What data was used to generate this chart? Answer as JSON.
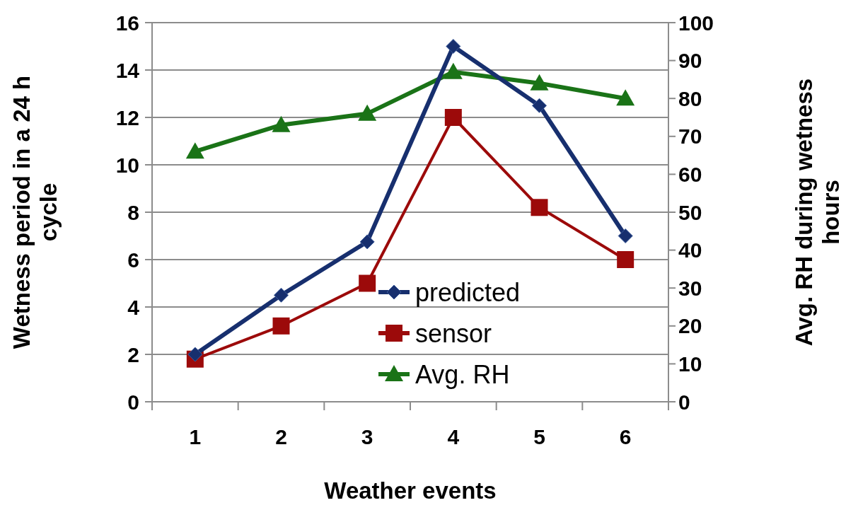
{
  "chart_data": {
    "type": "line",
    "xlabel": "Weather events",
    "ylabel": "Wetness period in a 24 h cycle",
    "y2label": "Avg. RH during wetness hours",
    "categories": [
      "1",
      "2",
      "3",
      "4",
      "5",
      "6"
    ],
    "series": [
      {
        "name": "predicted",
        "color": "#172f6e",
        "marker": "diamond",
        "values": [
          2.0,
          4.5,
          6.75,
          15.0,
          12.5,
          7.0
        ]
      },
      {
        "name": "sensor",
        "color": "#9c0a0a",
        "marker": "square",
        "values": [
          1.8,
          3.2,
          5.0,
          12.0,
          8.2,
          6.0
        ]
      },
      {
        "name": "Avg. RH",
        "color": "#1a7317",
        "marker": "triangle",
        "axis": "y2",
        "values": [
          66,
          73,
          76,
          87,
          84,
          80
        ]
      }
    ],
    "ylim": [
      0,
      16
    ],
    "yticks": [
      0,
      2,
      4,
      6,
      8,
      10,
      12,
      14,
      16
    ],
    "y2lim": [
      0,
      100
    ],
    "y2ticks": [
      0,
      10,
      20,
      30,
      40,
      50,
      60,
      70,
      80,
      90,
      100
    ],
    "grid": "y",
    "legend": "bottom right"
  }
}
